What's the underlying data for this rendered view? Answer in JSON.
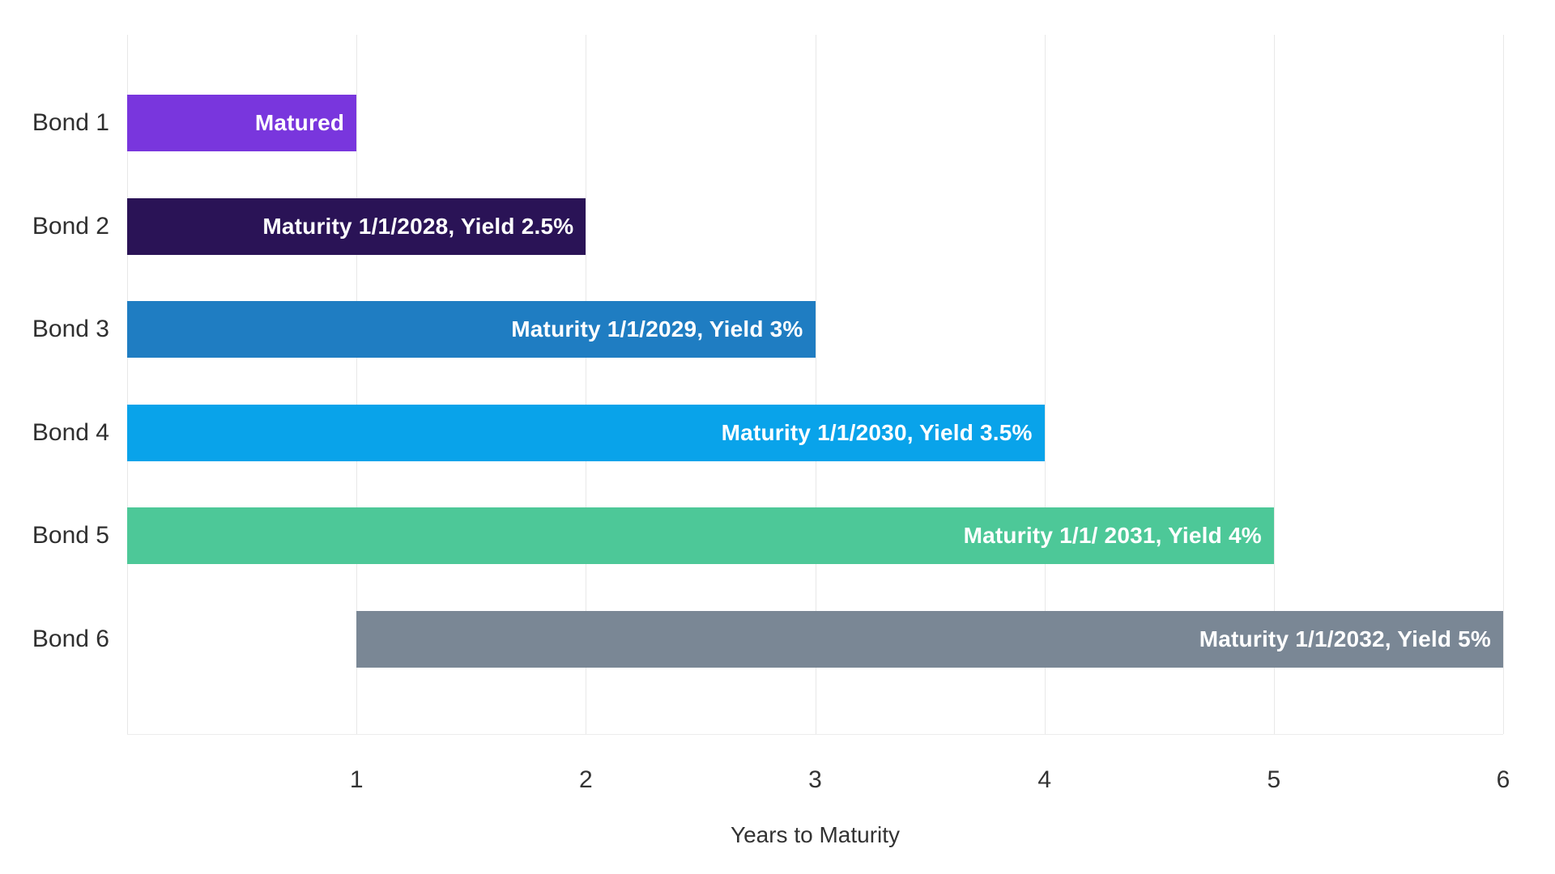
{
  "chart_data": {
    "type": "bar",
    "orientation": "horizontal",
    "xlabel": "Years to Maturity",
    "ylabel": "",
    "xlim": [
      0,
      6
    ],
    "x_ticks": [
      "1",
      "2",
      "3",
      "4",
      "5",
      "6"
    ],
    "grid": "vertical",
    "legend": "none",
    "categories": [
      "Bond 1",
      "Bond 2",
      "Bond 3",
      "Bond 4",
      "Bond 5",
      "Bond 6"
    ],
    "bars": [
      {
        "category": "Bond 1",
        "start": 0,
        "end": 1,
        "value": 1,
        "label": "Matured",
        "color": "#7936dd"
      },
      {
        "category": "Bond 2",
        "start": 0,
        "end": 2,
        "value": 2,
        "label": "Maturity 1/1/2028, Yield 2.5%",
        "color": "#2a1356"
      },
      {
        "category": "Bond 3",
        "start": 0,
        "end": 3,
        "value": 3,
        "label": "Maturity 1/1/2029, Yield 3%",
        "color": "#1f7dc2"
      },
      {
        "category": "Bond 4",
        "start": 0,
        "end": 4,
        "value": 4,
        "label": "Maturity 1/1/2030, Yield 3.5%",
        "color": "#09a3ea"
      },
      {
        "category": "Bond 5",
        "start": 0,
        "end": 5,
        "value": 5,
        "label": "Maturity 1/1/ 2031, Yield 4%",
        "color": "#4dc898"
      },
      {
        "category": "Bond 6",
        "start": 1,
        "end": 6,
        "value": 5,
        "label": "Maturity 1/1/2032, Yield 5%",
        "color": "#7a8795"
      }
    ],
    "grid_color": "#e8e8e8",
    "axis_text_color": "#333333",
    "bar_text_color": "#ffffff",
    "background_color": "#ffffff"
  }
}
